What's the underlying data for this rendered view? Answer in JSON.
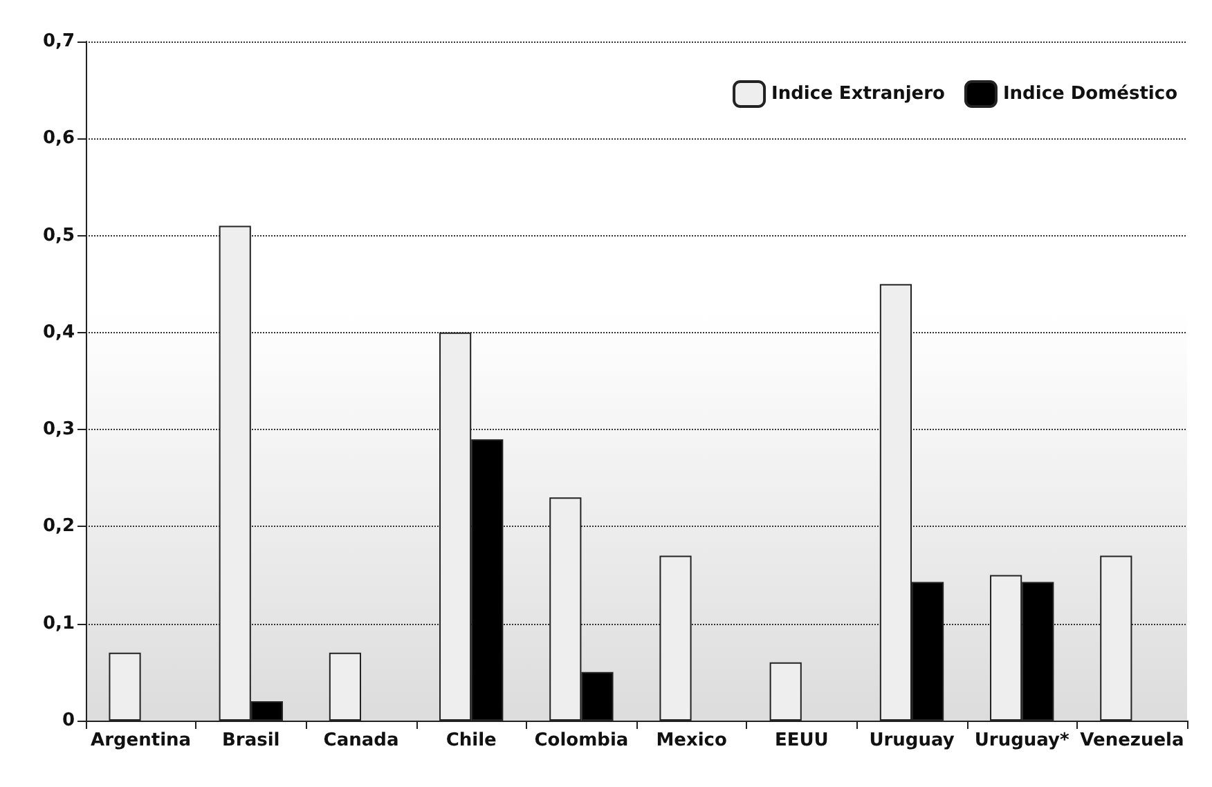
{
  "chart_data": {
    "type": "bar",
    "categories": [
      "Argentina",
      "Brasil",
      "Canada",
      "Chile",
      "Colombia",
      "Mexico",
      "EEUU",
      "Uruguay",
      "Uruguay*",
      "Venezuela"
    ],
    "series": [
      {
        "name": "Indice Extranjero",
        "color": "#eeeeee",
        "values": [
          0.07,
          0.51,
          0.07,
          0.4,
          0.23,
          0.17,
          0.06,
          0.45,
          0.15,
          0.17
        ]
      },
      {
        "name": "Indice Doméstico",
        "color": "#000000",
        "values": [
          null,
          0.02,
          null,
          0.29,
          0.05,
          null,
          null,
          0.143,
          0.143,
          null
        ]
      }
    ],
    "ylim": [
      0,
      0.7
    ],
    "yticks": [
      0,
      {
        "value": 0.1,
        "label": "0,1"
      },
      {
        "value": 0.2,
        "label": "0,2"
      },
      {
        "value": 0.3,
        "label": "0,3"
      },
      {
        "value": 0.4,
        "label": "0,4"
      },
      {
        "value": 0.5,
        "label": "0,5"
      },
      {
        "value": 0.6,
        "label": "0,6"
      },
      {
        "value": 0.7,
        "label": "0,7"
      }
    ],
    "grid": "y",
    "legend": "top right"
  }
}
